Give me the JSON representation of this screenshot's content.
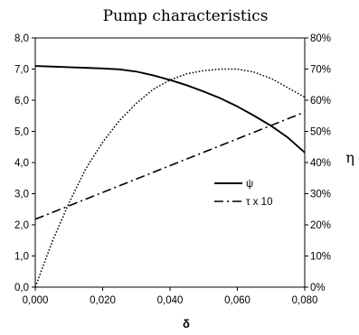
{
  "chart_data": {
    "type": "line",
    "title": "Pump characteristics",
    "xlabel": "δ",
    "ylabel_right": "η",
    "xlim": [
      0,
      0.08
    ],
    "ylim_left": [
      0,
      8
    ],
    "ylim_right": [
      0,
      0.8
    ],
    "x_ticks": [
      "0,000",
      "0,020",
      "0,040",
      "0,060",
      "0,080"
    ],
    "y_ticks_left": [
      "0,0",
      "1,0",
      "2,0",
      "3,0",
      "4,0",
      "5,0",
      "6,0",
      "7,0",
      "8,0"
    ],
    "y_ticks_right": [
      "0%",
      "10%",
      "20%",
      "30%",
      "40%",
      "50%",
      "60%",
      "70%",
      "80%"
    ],
    "grid": false,
    "legend_position": "center-right",
    "series": [
      {
        "name": "ψ",
        "axis": "left",
        "style": "solid",
        "color": "#000000",
        "x": [
          0,
          0.005,
          0.01,
          0.015,
          0.02,
          0.025,
          0.03,
          0.035,
          0.04,
          0.045,
          0.05,
          0.055,
          0.06,
          0.065,
          0.07,
          0.075,
          0.08
        ],
        "y": [
          7.1,
          7.08,
          7.06,
          7.04,
          7.02,
          6.99,
          6.92,
          6.8,
          6.65,
          6.48,
          6.28,
          6.06,
          5.8,
          5.5,
          5.18,
          4.8,
          4.32
        ]
      },
      {
        "name": "τ x 10",
        "axis": "left",
        "style": "dashdot",
        "color": "#000000",
        "x": [
          0,
          0.08
        ],
        "y": [
          2.18,
          5.62
        ]
      },
      {
        "name": "",
        "axis": "right",
        "style": "dotted",
        "color": "#000000",
        "x": [
          0,
          0.005,
          0.01,
          0.015,
          0.02,
          0.025,
          0.03,
          0.035,
          0.04,
          0.045,
          0.05,
          0.055,
          0.058,
          0.06,
          0.065,
          0.07,
          0.075,
          0.08
        ],
        "y": [
          0.0,
          0.145,
          0.27,
          0.38,
          0.465,
          0.535,
          0.59,
          0.635,
          0.665,
          0.685,
          0.695,
          0.7,
          0.7,
          0.7,
          0.69,
          0.67,
          0.64,
          0.61
        ]
      }
    ]
  }
}
